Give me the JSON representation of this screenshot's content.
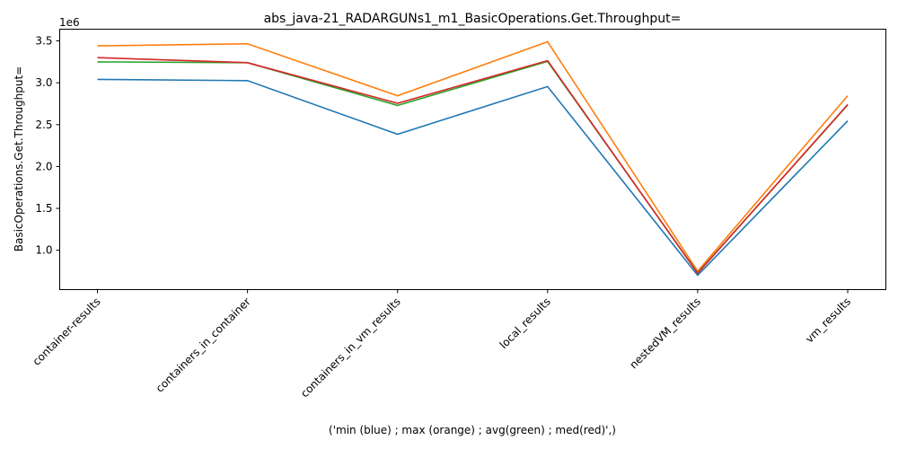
{
  "chart_data": {
    "type": "line",
    "title": "abs_java-21_RADARGUNs1_m1_BasicOperations.Get.Throughput=",
    "xlabel": "('min (blue) ; max (orange) ; avg(green) ; med(red)',)",
    "ylabel": "BasicOperations.Get.Throughput=",
    "y_offset_label": "1e6",
    "categories": [
      "container-results",
      "containers_in_container",
      "containers_in_vm_results",
      "local_results",
      "nestedVM_results",
      "vm_results"
    ],
    "yticks": [
      1.0,
      1.5,
      2.0,
      2.5,
      3.0,
      3.5
    ],
    "ytick_labels": [
      "1.0",
      "1.5",
      "2.0",
      "2.5",
      "3.0",
      "3.5"
    ],
    "ylim": [
      0.53,
      3.64
    ],
    "grid": false,
    "series": [
      {
        "color": "#1f77b4",
        "values": [
          3.04,
          3.025,
          2.385,
          2.955,
          0.7,
          2.545
        ]
      },
      {
        "color": "#ff7f0e",
        "values": [
          3.44,
          3.465,
          2.845,
          3.49,
          0.75,
          2.845
        ]
      },
      {
        "color": "#2ca02c",
        "values": [
          3.25,
          3.24,
          2.73,
          3.255,
          0.73,
          2.735
        ]
      },
      {
        "color": "#d62728",
        "values": [
          3.3,
          3.24,
          2.755,
          3.265,
          0.725,
          2.74
        ]
      }
    ]
  }
}
